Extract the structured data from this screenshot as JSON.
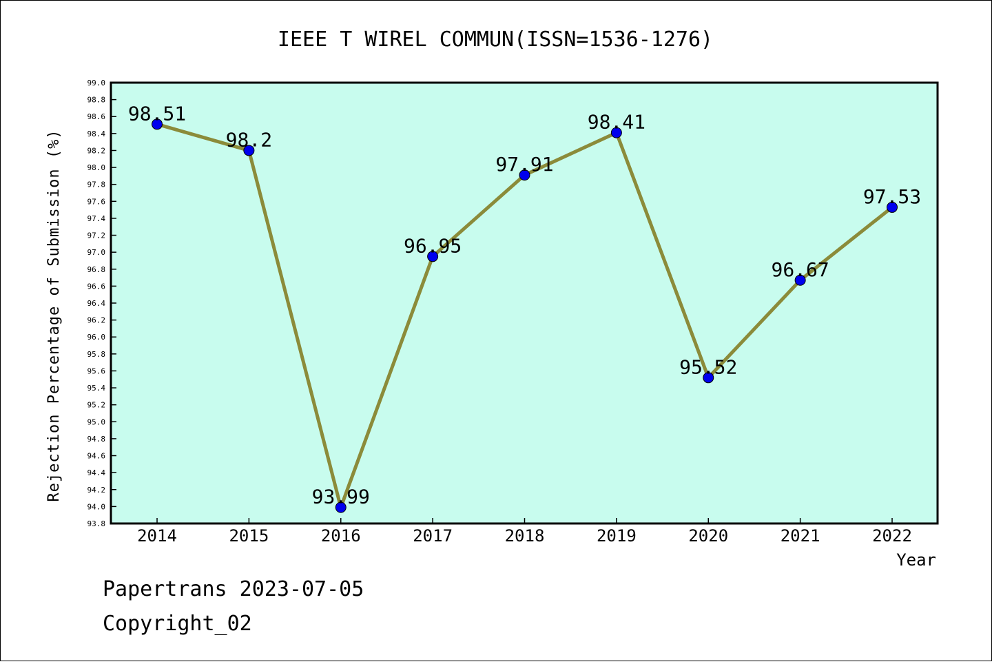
{
  "chart_data": {
    "type": "line",
    "title": "IEEE T WIREL COMMUN(ISSN=1536-1276)",
    "xlabel": "Year",
    "ylabel": "Rejection Percentage of Submission (%)",
    "categories": [
      "2014",
      "2015",
      "2016",
      "2017",
      "2018",
      "2019",
      "2020",
      "2021",
      "2022"
    ],
    "series": [
      {
        "values": [
          98.51,
          98.2,
          93.99,
          96.95,
          97.91,
          98.41,
          95.52,
          96.67,
          97.53
        ]
      }
    ],
    "data_labels": [
      "98.51",
      "98.2",
      "93.99",
      "96.95",
      "97.91",
      "98.41",
      "95.52",
      "96.67",
      "97.53"
    ],
    "ylim": [
      93.8,
      99.0
    ],
    "yticks": [
      "93.8",
      "94.0",
      "94.2",
      "94.4",
      "94.6",
      "94.8",
      "95.0",
      "95.2",
      "95.4",
      "95.6",
      "95.8",
      "96.0",
      "96.2",
      "96.4",
      "96.6",
      "96.8",
      "97.0",
      "97.2",
      "97.4",
      "97.6",
      "97.8",
      "98.0",
      "98.2",
      "98.4",
      "98.6",
      "98.8",
      "99.0"
    ],
    "grid": false,
    "legend": "none",
    "colors": {
      "plot_background": "#c8fcee",
      "line": "#8b8b3a",
      "marker": "#0000ee"
    }
  },
  "footer": {
    "line1": "Papertrans 2023-07-05",
    "line2": "Copyright_02"
  }
}
